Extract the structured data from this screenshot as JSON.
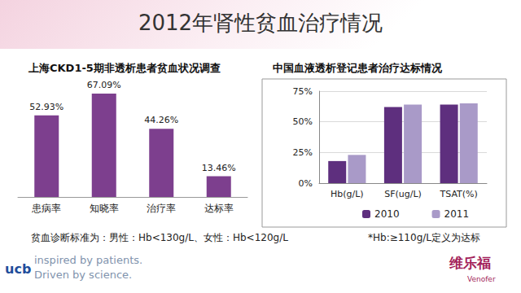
{
  "title": "2012年肾性贫血治疗情况",
  "chart_data": [
    {
      "type": "bar",
      "title": "上海CKD1-5期非透析患者贫血状况调查",
      "categories": [
        "患病率",
        "知晓率",
        "治疗率",
        "达标率"
      ],
      "values": [
        52.93,
        67.09,
        44.26,
        13.46
      ],
      "value_labels": [
        "52.93%",
        "67.09%",
        "44.26%",
        "13.46%"
      ],
      "color": "#7d3f8e",
      "ylim": [
        0,
        75
      ],
      "data_labels": true,
      "tick_labels": "x",
      "grid": false
    },
    {
      "type": "bar",
      "title": "中国血液透析登记患者治疗达标情况",
      "categories": [
        "Hb(g/L)",
        "SF(ug/L)",
        "TSAT(%)"
      ],
      "series": [
        {
          "name": "2010",
          "color": "#5e2f7e",
          "values": [
            18,
            62,
            64
          ]
        },
        {
          "name": "2011",
          "color": "#a99ac8",
          "values": [
            23,
            64,
            65
          ]
        }
      ],
      "ylim": [
        0,
        75
      ],
      "yticks": [
        {
          "value": 0,
          "label": "0%"
        },
        {
          "value": 25,
          "label": "25%"
        },
        {
          "value": 50,
          "label": "50%"
        },
        {
          "value": 75,
          "label": "75%"
        }
      ],
      "grid": true,
      "legend": "bottom"
    }
  ],
  "notes": [
    "贫血诊断标准为：男性：Hb<130g/L、女性：Hb<120g/L",
    "*Hb:≥110g/L定义为达标"
  ],
  "footer": {
    "logo": "ucb",
    "slogan": [
      "inspired by patients.",
      "Driven by science."
    ],
    "product": "维乐福",
    "product_en": "Venofer"
  }
}
